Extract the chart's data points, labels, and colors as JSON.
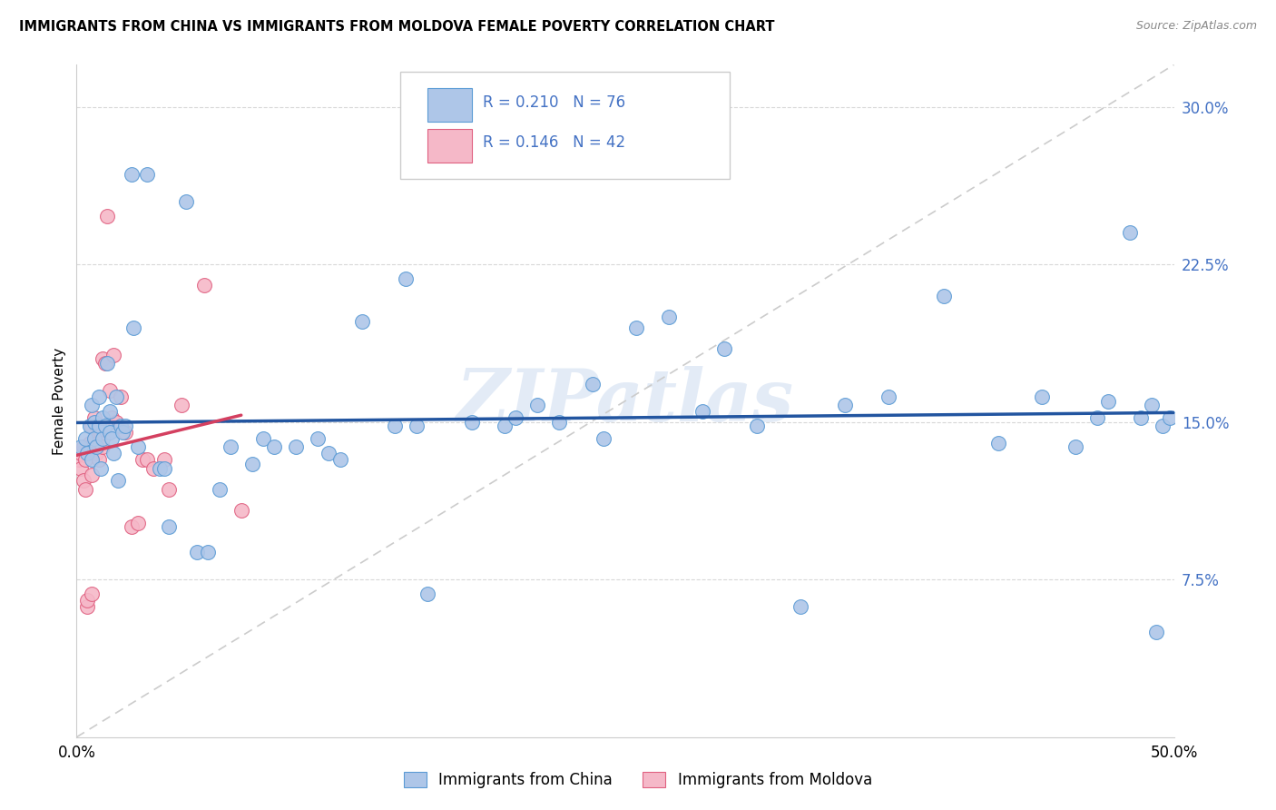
{
  "title": "IMMIGRANTS FROM CHINA VS IMMIGRANTS FROM MOLDOVA FEMALE POVERTY CORRELATION CHART",
  "source": "Source: ZipAtlas.com",
  "ylabel": "Female Poverty",
  "x_min": 0.0,
  "x_max": 0.5,
  "y_min": 0.0,
  "y_max": 0.32,
  "y_ticks": [
    0.075,
    0.15,
    0.225,
    0.3
  ],
  "y_tick_labels": [
    "7.5%",
    "15.0%",
    "22.5%",
    "30.0%"
  ],
  "china_R": "0.210",
  "china_N": "76",
  "moldova_R": "0.146",
  "moldova_N": "42",
  "china_color": "#aec6e8",
  "moldova_color": "#f5b8c8",
  "china_edge_color": "#5b9bd5",
  "moldova_edge_color": "#e06080",
  "china_line_color": "#2255a0",
  "moldova_line_color": "#d44060",
  "dashed_color": "#cccccc",
  "legend_text_color": "#4472c4",
  "watermark": "ZIPatlas",
  "china_scatter_x": [
    0.002,
    0.004,
    0.005,
    0.006,
    0.007,
    0.007,
    0.008,
    0.008,
    0.009,
    0.01,
    0.01,
    0.011,
    0.012,
    0.012,
    0.013,
    0.014,
    0.015,
    0.015,
    0.016,
    0.017,
    0.018,
    0.019,
    0.02,
    0.021,
    0.022,
    0.025,
    0.026,
    0.028,
    0.032,
    0.038,
    0.04,
    0.042,
    0.05,
    0.055,
    0.06,
    0.065,
    0.07,
    0.08,
    0.085,
    0.09,
    0.1,
    0.11,
    0.115,
    0.12,
    0.13,
    0.145,
    0.15,
    0.155,
    0.16,
    0.18,
    0.195,
    0.2,
    0.21,
    0.22,
    0.235,
    0.24,
    0.255,
    0.27,
    0.285,
    0.295,
    0.31,
    0.33,
    0.35,
    0.37,
    0.395,
    0.42,
    0.44,
    0.455,
    0.465,
    0.47,
    0.48,
    0.485,
    0.49,
    0.492,
    0.495,
    0.498
  ],
  "china_scatter_y": [
    0.138,
    0.142,
    0.135,
    0.148,
    0.132,
    0.158,
    0.142,
    0.15,
    0.138,
    0.148,
    0.162,
    0.128,
    0.152,
    0.142,
    0.148,
    0.178,
    0.145,
    0.155,
    0.142,
    0.135,
    0.162,
    0.122,
    0.148,
    0.145,
    0.148,
    0.268,
    0.195,
    0.138,
    0.268,
    0.128,
    0.128,
    0.1,
    0.255,
    0.088,
    0.088,
    0.118,
    0.138,
    0.13,
    0.142,
    0.138,
    0.138,
    0.142,
    0.135,
    0.132,
    0.198,
    0.148,
    0.218,
    0.148,
    0.068,
    0.15,
    0.148,
    0.152,
    0.158,
    0.15,
    0.168,
    0.142,
    0.195,
    0.2,
    0.155,
    0.185,
    0.148,
    0.062,
    0.158,
    0.162,
    0.21,
    0.14,
    0.162,
    0.138,
    0.152,
    0.16,
    0.24,
    0.152,
    0.158,
    0.05,
    0.148,
    0.152
  ],
  "moldova_scatter_x": [
    0.001,
    0.002,
    0.002,
    0.003,
    0.003,
    0.004,
    0.004,
    0.005,
    0.005,
    0.006,
    0.006,
    0.007,
    0.007,
    0.007,
    0.008,
    0.008,
    0.009,
    0.009,
    0.01,
    0.01,
    0.011,
    0.011,
    0.012,
    0.012,
    0.013,
    0.014,
    0.015,
    0.016,
    0.017,
    0.018,
    0.02,
    0.022,
    0.025,
    0.028,
    0.03,
    0.032,
    0.035,
    0.04,
    0.042,
    0.048,
    0.058,
    0.075
  ],
  "moldova_scatter_y": [
    0.132,
    0.128,
    0.135,
    0.122,
    0.138,
    0.118,
    0.132,
    0.062,
    0.065,
    0.14,
    0.138,
    0.148,
    0.125,
    0.068,
    0.152,
    0.142,
    0.148,
    0.135,
    0.132,
    0.145,
    0.145,
    0.14,
    0.18,
    0.138,
    0.178,
    0.248,
    0.165,
    0.152,
    0.182,
    0.15,
    0.162,
    0.145,
    0.1,
    0.102,
    0.132,
    0.132,
    0.128,
    0.132,
    0.118,
    0.158,
    0.215,
    0.108
  ]
}
